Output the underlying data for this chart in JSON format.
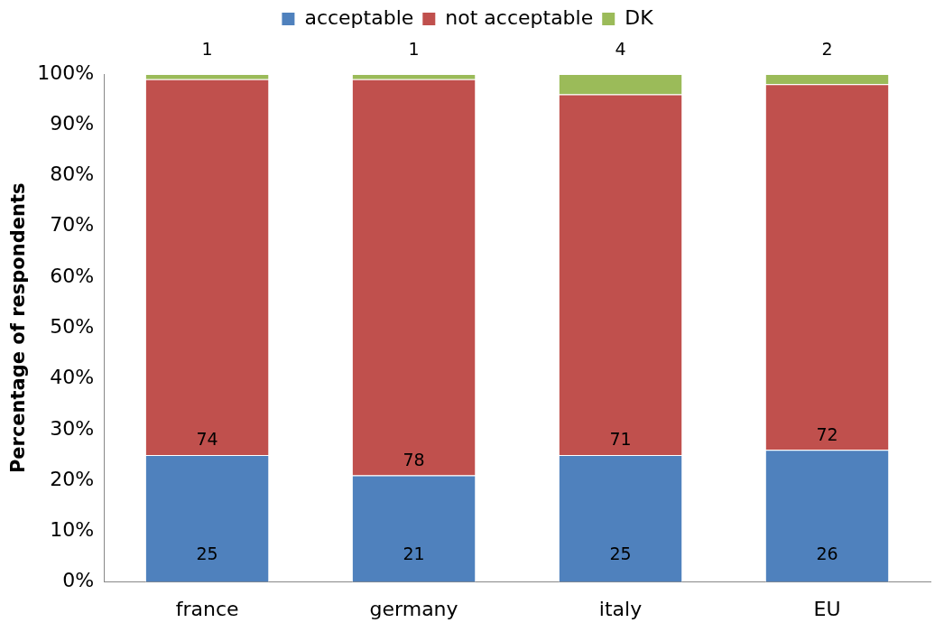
{
  "chart_data": {
    "type": "bar",
    "stacked": true,
    "ylabel": "Percentage of respondents",
    "categories": [
      "france",
      "germany",
      "italy",
      "EU"
    ],
    "series": [
      {
        "name": "acceptable",
        "color": "#4f81bd",
        "values": [
          25,
          21,
          25,
          26
        ]
      },
      {
        "name": "not acceptable",
        "color": "#c0504d",
        "values": [
          74,
          78,
          71,
          72
        ]
      },
      {
        "name": "DK",
        "color": "#9bbb59",
        "values": [
          1,
          1,
          4,
          2
        ]
      }
    ],
    "ylim": [
      0,
      100
    ],
    "yticks": [
      {
        "value": 0,
        "label": "0%"
      },
      {
        "value": 10,
        "label": "10%"
      },
      {
        "value": 20,
        "label": "20%"
      },
      {
        "value": 30,
        "label": "30%"
      },
      {
        "value": 40,
        "label": "40%"
      },
      {
        "value": 50,
        "label": "50%"
      },
      {
        "value": 60,
        "label": "60%"
      },
      {
        "value": 70,
        "label": "70%"
      },
      {
        "value": 80,
        "label": "80%"
      },
      {
        "value": 90,
        "label": "90%"
      },
      {
        "value": 100,
        "label": "100%"
      }
    ],
    "grid": false,
    "legend": "top",
    "data_labels": true
  }
}
